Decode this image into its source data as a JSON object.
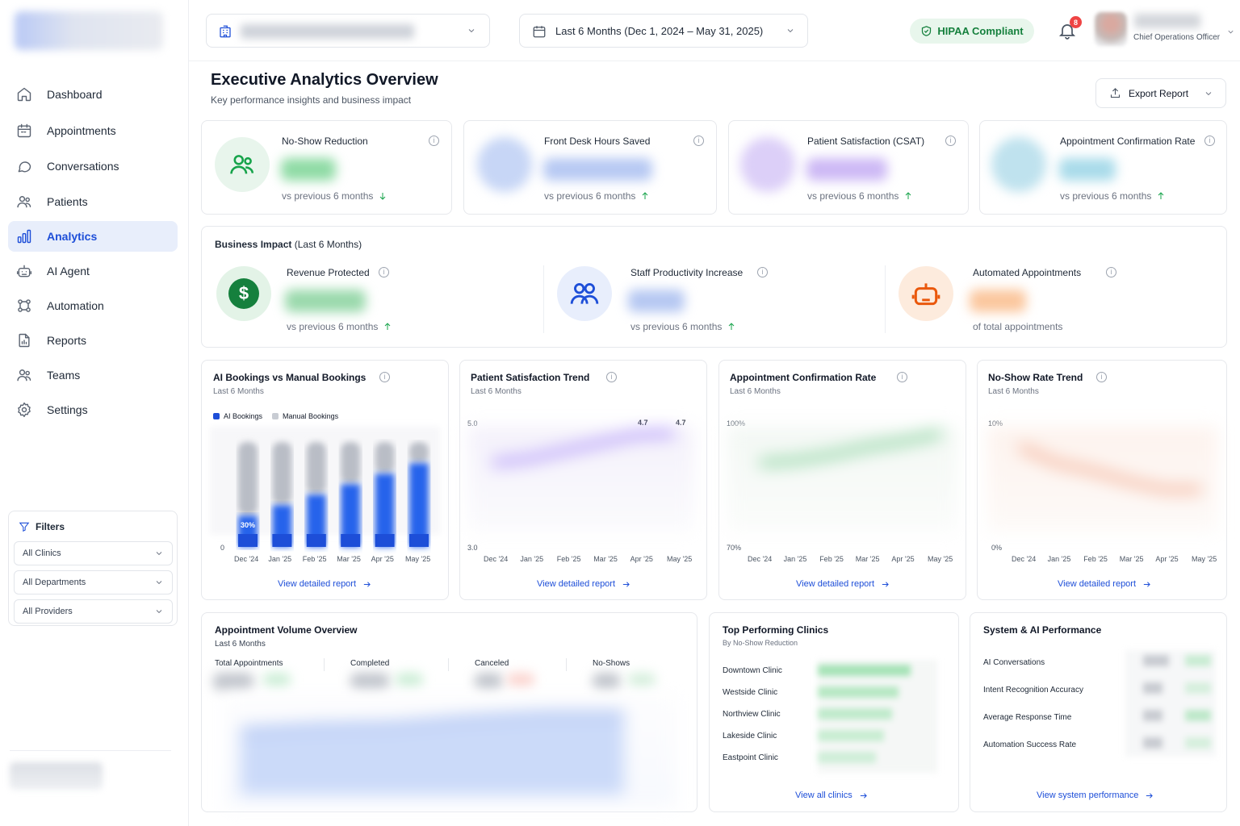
{
  "header": {
    "date_range": "Last 6 Months (Dec 1, 2024 – May 31, 2025)",
    "hipaa": "HIPAA Compliant",
    "notifications": "8",
    "user_role": "Chief Operations Officer"
  },
  "sidebar": {
    "items": [
      {
        "label": "Dashboard",
        "icon": "home-icon"
      },
      {
        "label": "Appointments",
        "icon": "calendar-icon"
      },
      {
        "label": "Conversations",
        "icon": "chat-icon"
      },
      {
        "label": "Patients",
        "icon": "users-icon"
      },
      {
        "label": "Analytics",
        "icon": "bar-chart-icon",
        "active": true
      },
      {
        "label": "AI Agent",
        "icon": "robot-icon"
      },
      {
        "label": "Automation",
        "icon": "automation-icon"
      },
      {
        "label": "Reports",
        "icon": "report-icon"
      },
      {
        "label": "Teams",
        "icon": "team-icon"
      },
      {
        "label": "Settings",
        "icon": "gear-icon"
      }
    ],
    "filters": {
      "title": "Filters",
      "clinics": "All Clinics",
      "departments": "All Departments",
      "providers": "All Providers"
    }
  },
  "page": {
    "title": "Executive Analytics Overview",
    "subtitle": "Key performance insights and business impact",
    "export": "Export Report"
  },
  "kpis": [
    {
      "title": "No-Show Reduction",
      "vs": "vs previous 6 months",
      "trend": "down",
      "color": "#16a34a"
    },
    {
      "title": "Front Desk Hours Saved",
      "vs": "vs previous 6 months",
      "trend": "up",
      "color": "#3b82f6"
    },
    {
      "title": "Patient Satisfaction (CSAT)",
      "vs": "vs previous 6 months",
      "trend": "up",
      "color": "#8b5cf6"
    },
    {
      "title": "Appointment Confirmation Rate",
      "vs": "vs previous 6 months",
      "trend": "up",
      "color": "#0ea5e9"
    }
  ],
  "impact": {
    "title": "Business Impact",
    "title_suffix": "(Last 6 Months)",
    "items": [
      {
        "title": "Revenue Protected",
        "sub": "vs previous 6 months"
      },
      {
        "title": "Staff Productivity Increase",
        "sub": "vs previous 6 months"
      },
      {
        "title": "Automated Appointments",
        "sub": "of total appointments"
      }
    ]
  },
  "charts": {
    "ai_bookings": {
      "title": "AI Bookings vs Manual Bookings",
      "sub": "Last 6 Months",
      "legend": [
        "AI Bookings",
        "Manual Bookings"
      ],
      "first_label": "30%",
      "y_min": "0",
      "link": "View detailed report"
    },
    "satisfaction": {
      "title": "Patient Satisfaction Trend",
      "sub": "Last 6 Months",
      "y_top": "5.0",
      "y_bottom": "3.0",
      "labels": [
        "4.7",
        "4.7"
      ],
      "link": "View detailed report"
    },
    "confirmation": {
      "title": "Appointment Confirmation Rate",
      "sub": "Last 6 Months",
      "y_top": "100%",
      "y_bottom": "70%",
      "link": "View detailed report"
    },
    "noshow": {
      "title": "No-Show Rate Trend",
      "sub": "Last 6 Months",
      "y_top": "10%",
      "y_bottom": "0%",
      "link": "View detailed report"
    },
    "months": [
      "Dec '24",
      "Jan '25",
      "Feb '25",
      "Mar '25",
      "Apr '25",
      "May '25"
    ]
  },
  "volume": {
    "title": "Appointment Volume Overview",
    "sub": "Last 6 Months",
    "cols": [
      {
        "label": "Total Appointments",
        "color": "#1d4ed8"
      },
      {
        "label": "Completed",
        "color": "#15803d"
      },
      {
        "label": "Canceled",
        "color": "#ea580c"
      },
      {
        "label": "No-Shows",
        "color": "#dc2626"
      }
    ]
  },
  "clinics": {
    "title": "Top Performing Clinics",
    "sub": "By No-Show Reduction",
    "items": [
      "Downtown Clinic",
      "Westside Clinic",
      "Northview Clinic",
      "Lakeside Clinic",
      "Eastpoint Clinic"
    ],
    "link": "View all clinics"
  },
  "system": {
    "title": "System & AI Performance",
    "items": [
      "AI Conversations",
      "Intent Recognition Accuracy",
      "Average Response Time",
      "Automation Success Rate"
    ],
    "link": "View system performance"
  },
  "chart_data": {
    "type": "bar",
    "categories": [
      "Dec '24",
      "Jan '25",
      "Feb '25",
      "Mar '25",
      "Apr '25",
      "May '25"
    ],
    "series": [
      {
        "name": "AI Bookings",
        "values": [
          0.3,
          0.4,
          0.5,
          0.6,
          0.7,
          0.8
        ]
      },
      {
        "name": "Manual Bookings",
        "values": [
          0.7,
          0.6,
          0.5,
          0.4,
          0.3,
          0.2
        ]
      }
    ]
  }
}
